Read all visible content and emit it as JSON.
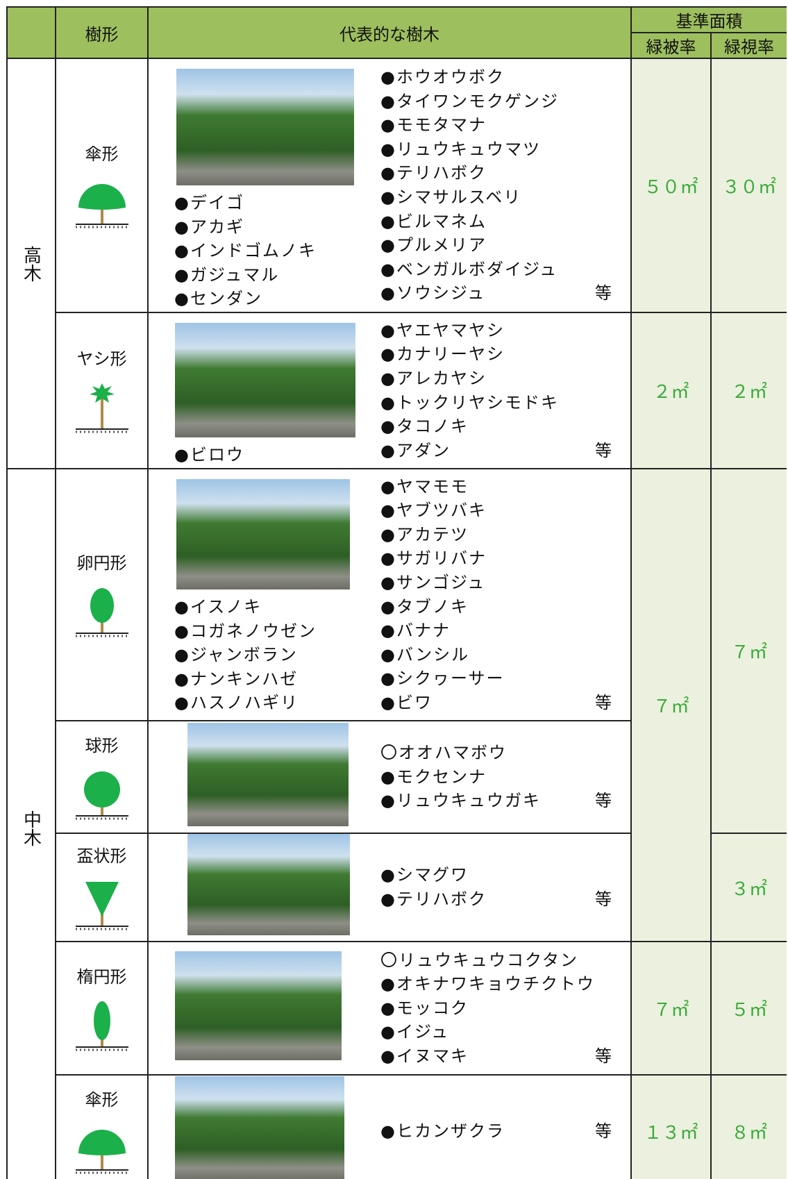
{
  "header": {
    "shape": "樹形",
    "trees": "代表的な樹木",
    "area": "基準面積",
    "green_cover": "緑被率",
    "green_view": "緑視率"
  },
  "categories": [
    {
      "label": "高木"
    },
    {
      "label": "中木"
    }
  ],
  "rows": [
    {
      "shape": "傘形",
      "left_trees": [
        "●デイゴ",
        "●アカギ",
        "●インドゴムノキ",
        "●ガジュマル",
        "●センダン"
      ],
      "right_trees": [
        "●ホウオウボク",
        "●タイワンモクゲンジ",
        "●モモタマナ",
        "●リュウキュウマツ",
        "●テリハボク",
        "●シマサルスベリ",
        "●ビルマネム",
        "●プルメリア",
        "●ベンガルボダイジュ",
        "●ソウシジュ"
      ],
      "suffix": "等"
    },
    {
      "shape": "ヤシ形",
      "left_trees": [
        "●ビロウ"
      ],
      "right_trees": [
        "●ヤエヤマヤシ",
        "●カナリーヤシ",
        "●アレカヤシ",
        "●トックリヤシモドキ",
        "●タコノキ",
        "●アダン"
      ],
      "suffix": "等"
    },
    {
      "shape": "卵円形",
      "left_trees": [
        "●イスノキ",
        "●コガネノウゼン",
        "●ジャンボラン",
        "●ナンキンハゼ",
        "●ハスノハギリ"
      ],
      "right_trees": [
        "●ヤマモモ",
        "●ヤブツバキ",
        "●アカテツ",
        "●サガリバナ",
        "●サンゴジュ",
        "●タブノキ",
        "●バナナ",
        "●バンシル",
        "●シクヮーサー",
        "●ビワ"
      ],
      "suffix": "等"
    },
    {
      "shape": "球形",
      "right_trees": [
        "〇オオハマボウ",
        "●モクセンナ",
        "●リュウキュウガキ"
      ],
      "suffix": "等"
    },
    {
      "shape": "盃状形",
      "right_trees": [
        "●シマグワ",
        "●テリハボク"
      ],
      "suffix": "等"
    },
    {
      "shape": "楕円形",
      "right_trees": [
        "〇リュウキュウコクタン",
        "●オキナワキョウチクトウ",
        "●モッコク",
        "●イジュ",
        "●イヌマキ"
      ],
      "suffix": "等"
    },
    {
      "shape": "傘形",
      "right_trees": [
        "●ヒカンザクラ"
      ],
      "suffix": "等"
    }
  ],
  "green_cover": [
    "５０㎡",
    "２㎡",
    "７㎡",
    "７㎡",
    "１３㎡"
  ],
  "green_view": [
    "３０㎡",
    "２㎡",
    "７㎡",
    "３㎡",
    "５㎡",
    "８㎡"
  ]
}
